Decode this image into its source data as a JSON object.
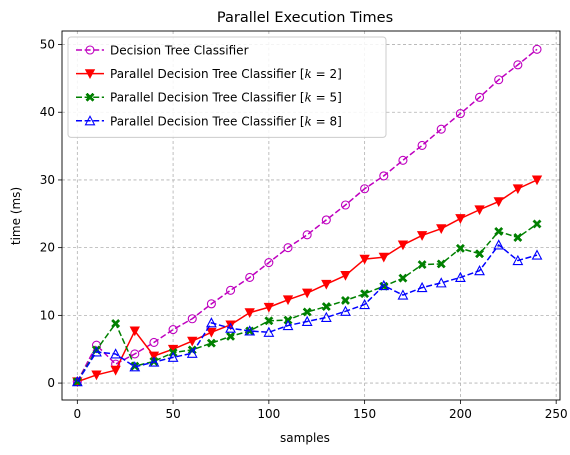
{
  "chart_data": {
    "type": "line",
    "title": "Parallel Execution Times",
    "xlabel": "samples",
    "ylabel": "time (ms)",
    "xlim": [
      -8,
      252
    ],
    "ylim": [
      -2.5,
      52
    ],
    "xticks": [
      0,
      50,
      100,
      150,
      200,
      250
    ],
    "yticks": [
      0,
      10,
      20,
      30,
      40,
      50
    ],
    "grid": true,
    "legend_position": "upper left",
    "x": [
      0,
      10,
      20,
      30,
      40,
      50,
      60,
      70,
      80,
      90,
      100,
      110,
      120,
      130,
      140,
      150,
      160,
      170,
      180,
      190,
      200,
      210,
      220,
      230,
      240
    ],
    "series": [
      {
        "name": "Decision Tree Classifier",
        "color": "#bf00bf",
        "line_style": "dashed",
        "marker": "circle-open",
        "values": [
          0.2,
          5.6,
          2.8,
          4.3,
          6.0,
          7.9,
          9.5,
          11.7,
          13.7,
          15.6,
          17.8,
          20.0,
          21.9,
          24.1,
          26.3,
          28.7,
          30.6,
          32.9,
          35.1,
          37.5,
          39.8,
          42.2,
          44.8,
          47.0,
          49.3
        ]
      },
      {
        "name": "Parallel Decision Tree Classifier [k = 2]",
        "name_prefix": "Parallel Decision Tree Classifier [",
        "name_var": "k",
        "name_suffix": " = 2]",
        "color": "#ff0000",
        "line_style": "solid",
        "marker": "triangle-down-filled",
        "values": [
          0.2,
          1.2,
          1.9,
          7.7,
          4.0,
          5.0,
          6.2,
          7.5,
          8.6,
          10.4,
          11.2,
          12.3,
          13.3,
          14.6,
          15.9,
          18.3,
          18.6,
          20.4,
          21.8,
          22.8,
          24.3,
          25.6,
          26.8,
          28.7,
          30.0
        ]
      },
      {
        "name": "Parallel Decision Tree Classifier [k = 5]",
        "name_prefix": "Parallel Decision Tree Classifier [",
        "name_var": "k",
        "name_suffix": " = 5]",
        "color": "#008000",
        "line_style": "dashed",
        "marker": "x-filled",
        "values": [
          0.2,
          4.9,
          8.8,
          2.5,
          3.2,
          4.5,
          4.9,
          5.9,
          6.9,
          7.7,
          9.2,
          9.3,
          10.5,
          11.3,
          12.2,
          13.2,
          14.3,
          15.5,
          17.5,
          17.6,
          19.9,
          19.1,
          22.4,
          21.5,
          23.5
        ]
      },
      {
        "name": "Parallel Decision Tree Classifier [k = 8]",
        "name_prefix": "Parallel Decision Tree Classifier [",
        "name_var": "k",
        "name_suffix": " = 8]",
        "color": "#0000ff",
        "line_style": "dashed",
        "marker": "triangle-up-open",
        "values": [
          0.2,
          4.6,
          4.3,
          2.4,
          3.1,
          3.8,
          4.4,
          8.9,
          8.1,
          7.7,
          7.5,
          8.5,
          9.1,
          9.7,
          10.6,
          11.6,
          14.4,
          13.0,
          14.1,
          14.8,
          15.6,
          16.6,
          20.4,
          18.1,
          18.9
        ]
      }
    ]
  }
}
